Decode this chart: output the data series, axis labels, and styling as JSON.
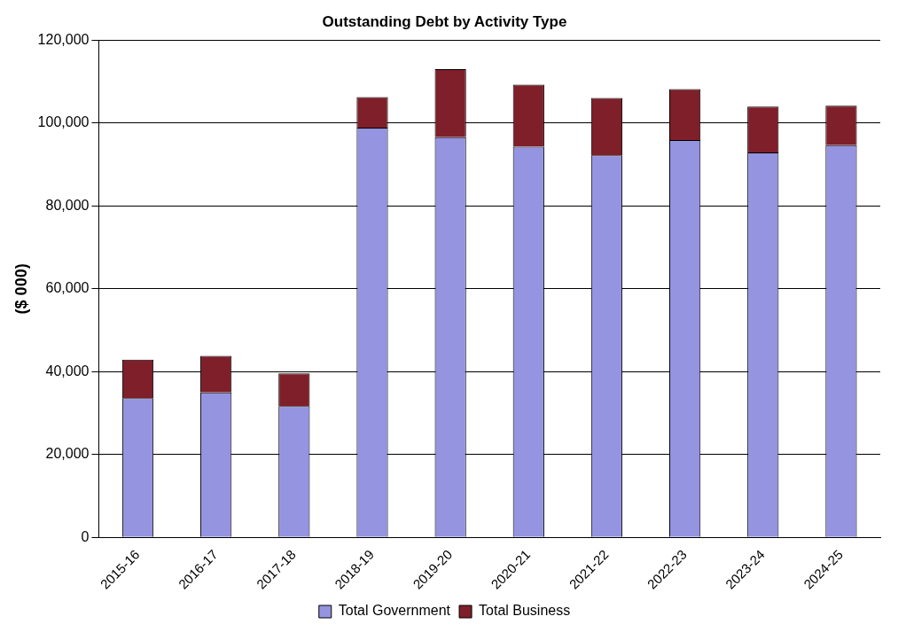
{
  "chart_data": {
    "type": "bar",
    "title": "Outstanding Debt by Activity Type",
    "ylabel": "($ 000)",
    "categories": [
      "2015-16",
      "2016-17",
      "2017-18",
      "2018-19",
      "2019-20",
      "2020-21",
      "2021-22",
      "2022-23",
      "2023-24",
      "2024-25"
    ],
    "stacked": true,
    "series": [
      {
        "name": "Total Government",
        "color": "#9494e0",
        "values": [
          33600,
          35000,
          31700,
          98900,
          96600,
          94300,
          92200,
          95900,
          92900,
          94700
        ]
      },
      {
        "name": "Total Business",
        "color": "#7f1f2a",
        "values": [
          9300,
          8800,
          7900,
          7400,
          16400,
          15000,
          13900,
          12300,
          11100,
          9500
        ]
      }
    ],
    "ylim": [
      0,
      120000
    ],
    "yticks": [
      {
        "value": 0,
        "label": "0"
      },
      {
        "value": 20000,
        "label": "20,000"
      },
      {
        "value": 40000,
        "label": "40,000"
      },
      {
        "value": 60000,
        "label": "60,000"
      },
      {
        "value": 80000,
        "label": "80,000"
      },
      {
        "value": 100000,
        "label": "100,000"
      },
      {
        "value": 120000,
        "label": "120,000"
      }
    ],
    "grid": "y",
    "legend": "bottom"
  }
}
